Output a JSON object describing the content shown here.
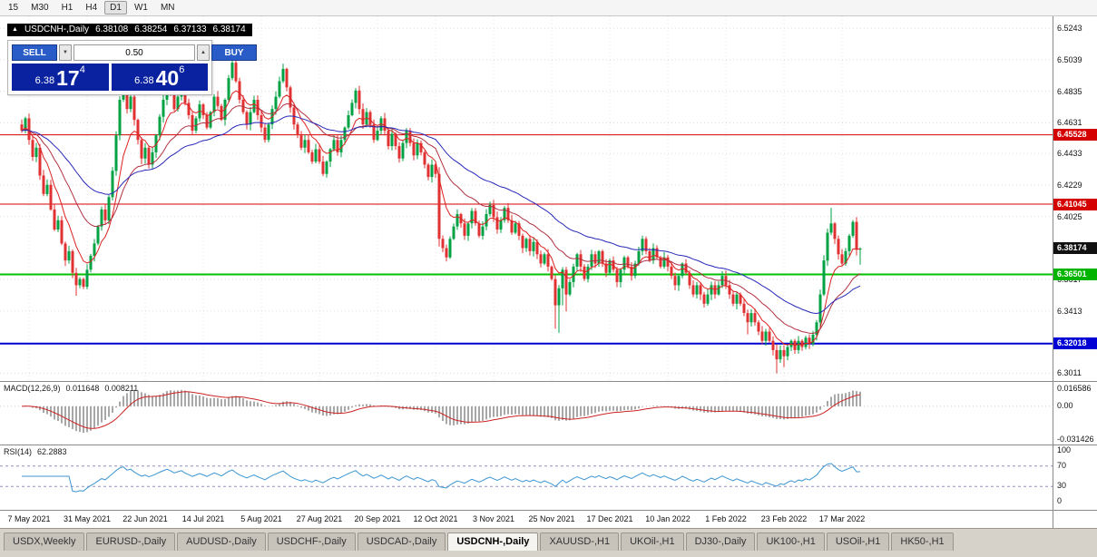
{
  "toolbar": {
    "timeframes": [
      "15",
      "M30",
      "H1",
      "H4",
      "D1",
      "W1",
      "MN"
    ],
    "active_timeframe": "D1"
  },
  "chart_header": {
    "symbol": "USDCNH-,Daily",
    "open": "6.38108",
    "high": "6.38254",
    "low": "6.37133",
    "close": "6.38174"
  },
  "trade_panel": {
    "sell_label": "SELL",
    "buy_label": "BUY",
    "lot_value": "0.50",
    "sell_price": {
      "prefix": "6.38",
      "big": "17",
      "sup": "4"
    },
    "buy_price": {
      "prefix": "6.38",
      "big": "40",
      "sup": "6"
    }
  },
  "indicators": {
    "macd": {
      "label": "MACD(12,26,9)",
      "value_main": "0.011648",
      "value_signal": "0.008211",
      "scale_labels": [
        "0.016586",
        "0.00",
        "-0.031426"
      ]
    },
    "rsi": {
      "label": "RSI(14)",
      "value": "62.2883",
      "scale_labels": [
        "100",
        "70",
        "30",
        "0"
      ]
    }
  },
  "axis": {
    "price_ticks": [
      "6.5243",
      "6.5039",
      "6.4835",
      "6.4631",
      "6.4433",
      "6.4229",
      "6.4025",
      "6.3617",
      "6.3413",
      "6.3011"
    ],
    "markers": [
      {
        "value": 6.45528,
        "label": "6.45528",
        "color": "#d40000",
        "type": "resistance-line"
      },
      {
        "value": 6.41045,
        "label": "6.41045",
        "color": "#d40000",
        "type": "resistance-line"
      },
      {
        "value": 6.38174,
        "label": "6.38174",
        "color": "#111111",
        "type": "current-price"
      },
      {
        "value": 6.36501,
        "label": "6.36501",
        "color": "#00b400",
        "type": "support-line"
      },
      {
        "value": 6.32018,
        "label": "6.32018",
        "color": "#0000d4",
        "type": "support-line"
      }
    ],
    "dates": [
      "7 May 2021",
      "31 May 2021",
      "22 Jun 2021",
      "14 Jul 2021",
      "5 Aug 2021",
      "27 Aug 2021",
      "20 Sep 2021",
      "12 Oct 2021",
      "3 Nov 2021",
      "25 Nov 2021",
      "17 Dec 2021",
      "10 Jan 2022",
      "1 Feb 2022",
      "23 Feb 2022",
      "17 Mar 2022"
    ],
    "label_start_index": 2,
    "label_step": 16
  },
  "chart_data": [
    {
      "type": "candlestick",
      "title": "USDCNH-,Daily",
      "y_range": [
        6.296,
        6.532
      ],
      "colors": {
        "up": "#00a243",
        "down": "#e03232"
      },
      "closes": [
        6.458,
        6.466,
        6.452,
        6.441,
        6.447,
        6.429,
        6.417,
        6.423,
        6.407,
        6.394,
        6.4,
        6.385,
        6.374,
        6.38,
        6.366,
        6.358,
        6.362,
        6.357,
        6.368,
        6.377,
        6.385,
        6.396,
        6.407,
        6.4,
        6.415,
        6.432,
        6.455,
        6.478,
        6.488,
        6.472,
        6.48,
        6.465,
        6.452,
        6.44,
        6.447,
        6.436,
        6.444,
        6.455,
        6.467,
        6.478,
        6.49,
        6.483,
        6.472,
        6.48,
        6.488,
        6.476,
        6.468,
        6.458,
        6.466,
        6.475,
        6.468,
        6.46,
        6.47,
        6.48,
        6.474,
        6.465,
        6.478,
        6.492,
        6.502,
        6.49,
        6.478,
        6.47,
        6.462,
        6.47,
        6.478,
        6.468,
        6.46,
        6.452,
        6.462,
        6.472,
        6.48,
        6.49,
        6.498,
        6.486,
        6.473,
        6.462,
        6.455,
        6.447,
        6.452,
        6.444,
        6.438,
        6.446,
        6.438,
        6.43,
        6.438,
        6.446,
        6.452,
        6.444,
        6.452,
        6.46,
        6.468,
        6.476,
        6.484,
        6.472,
        6.462,
        6.47,
        6.462,
        6.452,
        6.458,
        6.466,
        6.458,
        6.448,
        6.456,
        6.448,
        6.44,
        6.45,
        6.458,
        6.45,
        6.442,
        6.45,
        6.444,
        6.436,
        6.428,
        6.436,
        6.43,
        6.388,
        6.382,
        6.376,
        6.388,
        6.396,
        6.404,
        6.398,
        6.39,
        6.398,
        6.406,
        6.398,
        6.39,
        6.396,
        6.404,
        6.41,
        6.402,
        6.394,
        6.4,
        6.408,
        6.4,
        6.392,
        6.398,
        6.39,
        6.382,
        6.388,
        6.38,
        6.386,
        6.378,
        6.372,
        6.378,
        6.37,
        6.362,
        6.345,
        6.356,
        6.368,
        6.352,
        6.36,
        6.37,
        6.378,
        6.37,
        6.362,
        6.37,
        6.378,
        6.372,
        6.38,
        6.372,
        6.366,
        6.374,
        6.368,
        6.36,
        6.368,
        6.376,
        6.37,
        6.364,
        6.372,
        6.38,
        6.388,
        6.38,
        6.374,
        6.382,
        6.376,
        6.37,
        6.376,
        6.37,
        6.364,
        6.358,
        6.364,
        6.372,
        6.366,
        6.358,
        6.352,
        6.358,
        6.352,
        6.346,
        6.352,
        6.358,
        6.352,
        6.358,
        6.364,
        6.358,
        6.352,
        6.346,
        6.352,
        6.346,
        6.34,
        6.334,
        6.34,
        6.334,
        6.328,
        6.322,
        6.328,
        6.322,
        6.316,
        6.31,
        6.316,
        6.312,
        6.318,
        6.322,
        6.316,
        6.322,
        6.318,
        6.324,
        6.32,
        6.326,
        6.334,
        6.352,
        6.374,
        6.392,
        6.398,
        6.388,
        6.378,
        6.372,
        6.38,
        6.39,
        6.399,
        6.381,
        6.38174
      ],
      "last_ohlc": [
        6.38108,
        6.38254,
        6.37133,
        6.38174
      ],
      "wick_overrides": {
        "15": [
          0,
          0.005
        ],
        "28": [
          0.004,
          0
        ],
        "58": [
          0.005,
          0
        ],
        "115": [
          0.002,
          0.004
        ],
        "147": [
          0,
          0.012
        ],
        "148": [
          0,
          0.016
        ],
        "149": [
          0,
          0.01
        ],
        "150": [
          0,
          0.008
        ],
        "200": [
          0,
          0.005
        ],
        "208": [
          0,
          0.007
        ],
        "210": [
          0,
          0.005
        ],
        "223": [
          0.009,
          0
        ]
      },
      "levels": [
        {
          "price": 6.45528,
          "color": "#d40000",
          "width": 1
        },
        {
          "price": 6.41045,
          "color": "#d40000",
          "width": 1
        },
        {
          "price": 6.36501,
          "color": "#00c000",
          "width": 2
        },
        {
          "price": 6.32018,
          "color": "#0000d4",
          "width": 2
        }
      ],
      "moving_averages": [
        {
          "period": 8,
          "color": "#dd2020"
        },
        {
          "period": 21,
          "color": "#b03040"
        },
        {
          "period": 45,
          "color": "#2828b8"
        }
      ]
    },
    {
      "type": "macd",
      "params": [
        12,
        26,
        9
      ],
      "derived_from": "closes",
      "y_range": [
        -0.036,
        0.023
      ],
      "colors": {
        "histogram": "#a8a8a8",
        "signal": "#cc2222"
      }
    },
    {
      "type": "rsi",
      "params": [
        14
      ],
      "derived_from": "closes",
      "y_range": [
        0,
        100
      ],
      "levels": [
        30,
        70
      ],
      "color": "#3c96d2"
    }
  ],
  "tabs": [
    "USDX,Weekly",
    "EURUSD-,Daily",
    "AUDUSD-,Daily",
    "USDCHF-,Daily",
    "USDCAD-,Daily",
    "USDCNH-,Daily",
    "XAUUSD-,H1",
    "UKOil-,H1",
    "DJ30-,Daily",
    "UK100-,H1",
    "USOil-,H1",
    "HK50-,H1"
  ],
  "active_tab": "USDCNH-,Daily"
}
